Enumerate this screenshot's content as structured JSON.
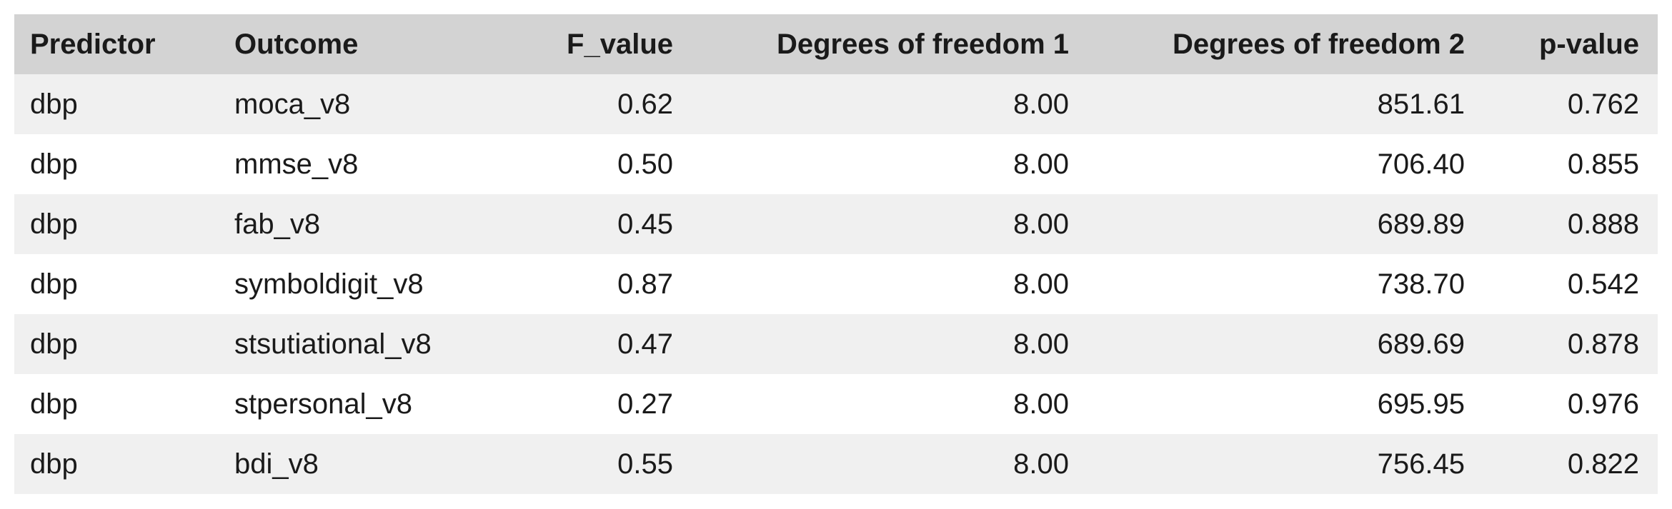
{
  "table": {
    "headers": [
      "Predictor",
      "Outcome",
      "F_value",
      "Degrees of freedom 1",
      "Degrees of freedom 2",
      "p-value"
    ],
    "rows": [
      [
        "dbp",
        "moca_v8",
        "0.62",
        "8.00",
        "851.61",
        "0.762"
      ],
      [
        "dbp",
        "mmse_v8",
        "0.50",
        "8.00",
        "706.40",
        "0.855"
      ],
      [
        "dbp",
        "fab_v8",
        "0.45",
        "8.00",
        "689.89",
        "0.888"
      ],
      [
        "dbp",
        "symboldigit_v8",
        "0.87",
        "8.00",
        "738.70",
        "0.542"
      ],
      [
        "dbp",
        "stsutiational_v8",
        "0.47",
        "8.00",
        "689.69",
        "0.878"
      ],
      [
        "dbp",
        "stpersonal_v8",
        "0.27",
        "8.00",
        "695.95",
        "0.976"
      ],
      [
        "dbp",
        "bdi_v8",
        "0.55",
        "8.00",
        "756.45",
        "0.822"
      ]
    ]
  }
}
